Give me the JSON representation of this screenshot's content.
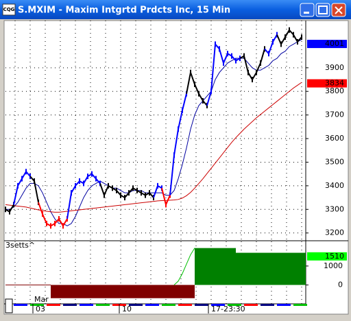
{
  "window": {
    "icon": "CQG",
    "title": "S.MXIM - Maxim Intgrtd Prdcts Inc, 15 Min"
  },
  "chart_data": {
    "type": "line",
    "ylim": [
      3170,
      4100
    ],
    "yticks": [
      3200,
      3300,
      3400,
      3500,
      3600,
      3700,
      3800,
      3900
    ],
    "grid": true,
    "price": {
      "values": [
        3300,
        3290,
        3320,
        3400,
        3430,
        3460,
        3440,
        3420,
        3330,
        3280,
        3240,
        3230,
        3240,
        3260,
        3230,
        3260,
        3370,
        3400,
        3420,
        3410,
        3440,
        3450,
        3430,
        3410,
        3360,
        3400,
        3390,
        3380,
        3360,
        3350,
        3370,
        3390,
        3380,
        3370,
        3360,
        3370,
        3350,
        3400,
        3390,
        3320,
        3360,
        3530,
        3640,
        3720,
        3790,
        3880,
        3830,
        3790,
        3760,
        3740,
        3800,
        4000,
        3980,
        3920,
        3960,
        3950,
        3930,
        3940,
        3950,
        3880,
        3850,
        3880,
        3920,
        3980,
        3960,
        4010,
        4040,
        4000,
        4030,
        4060,
        4040,
        4010,
        4030
      ],
      "colors": [
        "#000000",
        "#000000",
        "#000000",
        "#0000ff",
        "#0000ff",
        "#0000ff",
        "#0000ff",
        "#000000",
        "#000000",
        "#ff0000",
        "#ff0000",
        "#ff0000",
        "#ff0000",
        "#ff0000",
        "#ff0000",
        "#ff0000",
        "#0000ff",
        "#0000ff",
        "#0000ff",
        "#0000ff",
        "#0000ff",
        "#0000ff",
        "#0000ff",
        "#0000ff",
        "#000000",
        "#000000",
        "#000000",
        "#000000",
        "#000000",
        "#000000",
        "#000000",
        "#000000",
        "#000000",
        "#000000",
        "#000000",
        "#000000",
        "#000000",
        "#0000ff",
        "#0000ff",
        "#ff0000",
        "#ff0000",
        "#0000ff",
        "#0000ff",
        "#0000ff",
        "#0000ff",
        "#000000",
        "#000000",
        "#000000",
        "#000000",
        "#000000",
        "#0000ff",
        "#0000ff",
        "#0000ff",
        "#0000ff",
        "#0000ff",
        "#0000ff",
        "#0000ff",
        "#0000ff",
        "#000000",
        "#000000",
        "#000000",
        "#000000",
        "#000000",
        "#000000",
        "#0000ff",
        "#0000ff",
        "#0000ff",
        "#000000",
        "#000000",
        "#000000",
        "#000000",
        "#000000",
        "#000000"
      ]
    },
    "series": [
      {
        "color": "#0000a0",
        "values": [
          3300,
          3300,
          3310,
          3330,
          3360,
          3390,
          3410,
          3410,
          3400,
          3370,
          3330,
          3290,
          3260,
          3240,
          3240,
          3230,
          3240,
          3270,
          3310,
          3350,
          3380,
          3400,
          3410,
          3420,
          3410,
          3400,
          3390,
          3390,
          3380,
          3370,
          3370,
          3380,
          3380,
          3380,
          3370,
          3370,
          3370,
          3370,
          3370,
          3360,
          3360,
          3380,
          3430,
          3490,
          3560,
          3640,
          3700,
          3740,
          3760,
          3780,
          3800,
          3850,
          3880,
          3900,
          3920,
          3930,
          3940,
          3940,
          3940,
          3920,
          3900,
          3890,
          3890,
          3900,
          3910,
          3930,
          3940,
          3960,
          3970,
          3990,
          4000,
          4010,
          4020
        ]
      },
      {
        "color": "#cc0000",
        "values": [
          3320,
          3318,
          3316,
          3314,
          3312,
          3310,
          3306,
          3302,
          3298,
          3295,
          3292,
          3290,
          3288,
          3288,
          3290,
          3292,
          3294,
          3296,
          3298,
          3300,
          3302,
          3304,
          3306,
          3308,
          3310,
          3312,
          3314,
          3316,
          3318,
          3320,
          3322,
          3324,
          3326,
          3328,
          3330,
          3332,
          3334,
          3336,
          3337,
          3338,
          3339,
          3340,
          3342,
          3348,
          3358,
          3372,
          3390,
          3410,
          3430,
          3452,
          3474,
          3496,
          3518,
          3540,
          3562,
          3584,
          3604,
          3622,
          3640,
          3656,
          3672,
          3688,
          3702,
          3716,
          3730,
          3744,
          3758,
          3772,
          3786,
          3800,
          3814,
          3826,
          3838
        ]
      }
    ],
    "last_price": {
      "value": 4001,
      "color": "#0000ff"
    },
    "ma_price": {
      "value": 3834,
      "color": "#ff0000"
    },
    "x_labels": [
      "03",
      "10",
      "17-23:30"
    ],
    "month_label": "Mar"
  },
  "indicator": {
    "type": "bar",
    "label": "3setts^",
    "ylim": [
      -1000,
      2300
    ],
    "yticks": [
      0,
      1000
    ],
    "values": [
      0,
      0,
      0,
      0,
      0,
      0,
      0,
      0,
      0,
      0,
      0,
      -700,
      -700,
      -700,
      -700,
      -700,
      -700,
      -700,
      -700,
      -700,
      -700,
      -700,
      -700,
      -700,
      -700,
      -700,
      -700,
      -700,
      -700,
      -700,
      -700,
      -700,
      -700,
      -700,
      -700,
      -700,
      -700,
      -700,
      -700,
      -700,
      -700,
      -700,
      -700,
      -700,
      -700,
      -700,
      1950,
      1950,
      1950,
      1950,
      1950,
      1950,
      1950,
      1950,
      1950,
      1950,
      1700,
      1700,
      1700,
      1700,
      1700,
      1700,
      1700,
      1700,
      1700,
      1700,
      1700,
      1700,
      1700,
      1700,
      1700,
      1700,
      1700
    ],
    "signal": [
      null,
      null,
      null,
      null,
      null,
      null,
      null,
      null,
      null,
      null,
      null,
      null,
      null,
      null,
      null,
      null,
      null,
      null,
      null,
      null,
      null,
      null,
      null,
      null,
      null,
      null,
      null,
      null,
      null,
      null,
      null,
      null,
      null,
      null,
      null,
      null,
      null,
      null,
      null,
      null,
      null,
      0,
      200,
      600,
      1100,
      1600,
      1950,
      null,
      null,
      null,
      null,
      null,
      null,
      null,
      null,
      null,
      null,
      null,
      null,
      null,
      null,
      null,
      null,
      null,
      null,
      null,
      null,
      null,
      null,
      null,
      null,
      null,
      null
    ],
    "positive_color": "#008000",
    "negative_color": "#800000",
    "tag": {
      "value": 1510,
      "color": "#00ff00"
    }
  }
}
